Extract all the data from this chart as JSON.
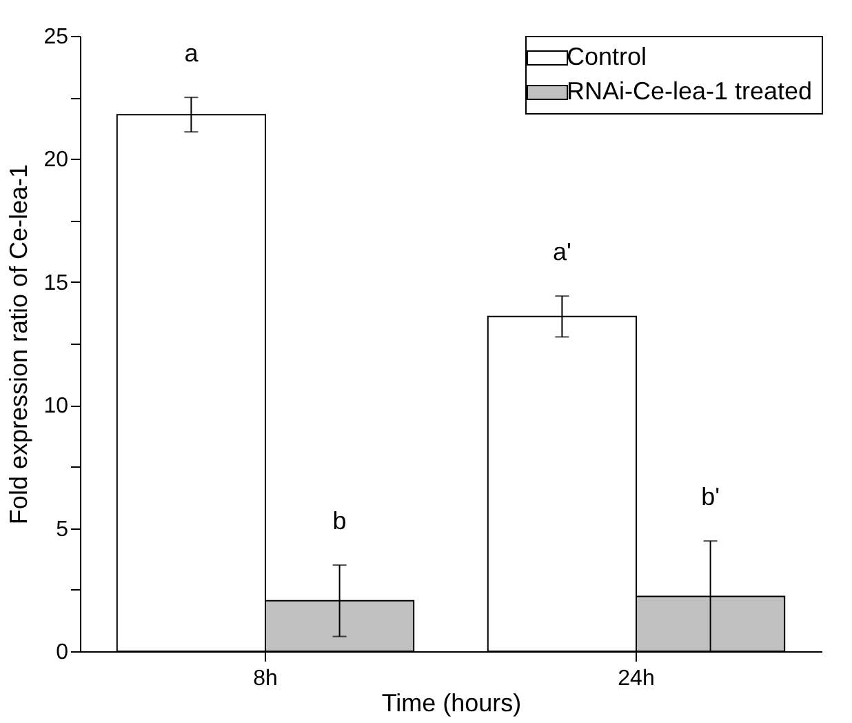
{
  "chart_data": {
    "type": "bar",
    "xlabel": "Time (hours)",
    "ylabel": "Fold expression ratio of Ce-lea-1",
    "categories": [
      "8h",
      "24h"
    ],
    "series": [
      {
        "name": "Control",
        "color": "#ffffff",
        "values": [
          21.8,
          13.6
        ],
        "errors": [
          0.7,
          0.83
        ]
      },
      {
        "name": "RNAi-Ce-lea-1 treated",
        "color": "#c0c0c0",
        "values": [
          2.05,
          2.23
        ],
        "errors": [
          1.45,
          2.25
        ]
      }
    ],
    "ylim": [
      0,
      25
    ],
    "yticks": [
      0,
      {
        "value": 2.5,
        "label": null
      },
      5,
      {
        "value": 7.5,
        "label": null
      },
      10,
      {
        "value": 12.5,
        "label": null
      },
      15,
      {
        "value": 17.5,
        "label": null
      },
      20,
      {
        "value": 22.5,
        "label": null
      },
      25
    ],
    "annotations": [
      "a",
      "b",
      "a'",
      "b'"
    ],
    "legend": "top right",
    "grid": false
  }
}
